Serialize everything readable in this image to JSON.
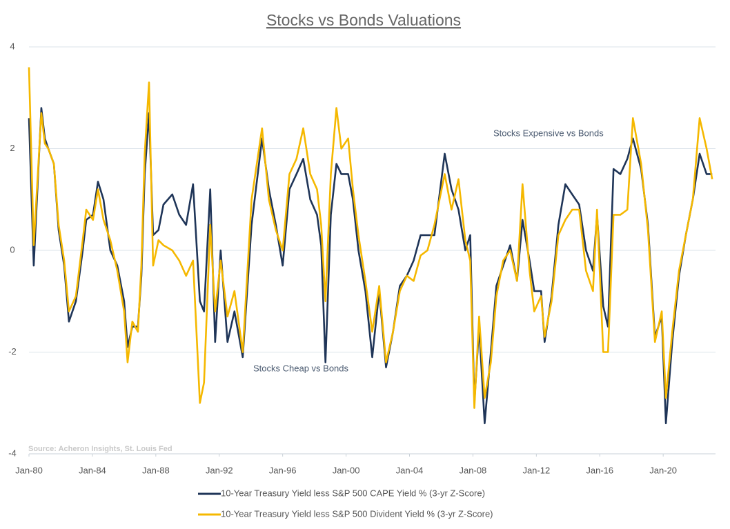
{
  "chart_data": {
    "type": "line",
    "title": "Stocks vs Bonds Valuations",
    "annotations": [
      "Stocks Expensive vs Bonds",
      "Stocks Cheap vs Bonds"
    ],
    "source": "Source: Acheron Insights, St. Louis Fed",
    "x": [
      1980.0,
      1980.3,
      1980.78,
      1981.0,
      1981.22,
      1981.57,
      1981.87,
      1982.22,
      1982.52,
      1982.96,
      1983.39,
      1983.61,
      1984.04,
      1984.35,
      1984.7,
      1985.13,
      1985.57,
      1986.0,
      1986.22,
      1986.52,
      1986.87,
      1987.09,
      1987.3,
      1987.57,
      1987.83,
      1988.17,
      1988.48,
      1989.04,
      1989.48,
      1989.91,
      1990.35,
      1990.78,
      1991.04,
      1991.43,
      1991.74,
      1992.09,
      1992.52,
      1992.96,
      1993.48,
      1994.04,
      1994.7,
      1995.13,
      1995.57,
      1996.0,
      1996.43,
      1996.87,
      1997.3,
      1997.74,
      1998.17,
      1998.43,
      1998.7,
      1999.04,
      1999.39,
      1999.7,
      2000.13,
      2000.43,
      2000.78,
      2001.22,
      2001.65,
      2002.09,
      2002.52,
      2002.96,
      2003.39,
      2003.83,
      2004.26,
      2004.7,
      2005.13,
      2005.57,
      2006.22,
      2006.65,
      2007.09,
      2007.52,
      2007.83,
      2008.09,
      2008.39,
      2008.74,
      2009.13,
      2009.48,
      2009.91,
      2010.35,
      2010.78,
      2011.13,
      2011.57,
      2011.87,
      2012.3,
      2012.52,
      2012.96,
      2013.39,
      2013.83,
      2014.26,
      2014.7,
      2015.13,
      2015.57,
      2015.83,
      2016.22,
      2016.52,
      2016.87,
      2017.3,
      2017.74,
      2018.09,
      2018.61,
      2019.04,
      2019.48,
      2019.91,
      2020.17,
      2020.57,
      2021.0,
      2021.43,
      2021.87,
      2022.3,
      2022.74,
      2023.09
    ],
    "series": [
      {
        "name": "10-Year Treasury Yield less S&P 500 CAPE Yield % (3-yr Z-Score)",
        "color": "#1f3558",
        "values": [
          2.6,
          -0.3,
          2.8,
          2.2,
          2.0,
          1.7,
          0.4,
          -0.3,
          -1.4,
          -1.0,
          0.0,
          0.6,
          0.7,
          1.35,
          1.0,
          0.0,
          -0.3,
          -1.0,
          -1.9,
          -1.5,
          -1.5,
          -0.5,
          1.5,
          2.7,
          0.3,
          0.4,
          0.9,
          1.1,
          0.7,
          0.5,
          1.3,
          -1.0,
          -1.2,
          1.2,
          -1.8,
          0.0,
          -1.8,
          -1.2,
          -2.1,
          0.5,
          2.2,
          1.2,
          0.5,
          -0.3,
          1.2,
          1.5,
          1.8,
          1.0,
          0.7,
          0.1,
          -2.2,
          0.7,
          1.7,
          1.5,
          1.5,
          1.0,
          0.0,
          -0.8,
          -2.1,
          -0.8,
          -2.3,
          -1.6,
          -0.7,
          -0.5,
          -0.2,
          0.3,
          0.3,
          0.3,
          1.9,
          1.2,
          0.8,
          0.0,
          0.3,
          -3.0,
          -1.5,
          -3.4,
          -2.0,
          -0.7,
          -0.3,
          0.1,
          -0.6,
          0.6,
          -0.2,
          -0.8,
          -0.8,
          -1.8,
          -0.9,
          0.5,
          1.3,
          1.1,
          0.9,
          0.0,
          -0.4,
          0.7,
          -1.1,
          -1.5,
          1.6,
          1.5,
          1.8,
          2.2,
          1.6,
          0.5,
          -1.7,
          -1.3,
          -3.4,
          -1.8,
          -0.5,
          0.3,
          1.0,
          1.9,
          1.5,
          1.5
        ]
      },
      {
        "name": "10-Year Treasury Yield less S&P 500 Divident Yield % (3-yr Z-Score)",
        "color": "#f5b800",
        "values": [
          3.6,
          0.1,
          2.7,
          2.1,
          2.0,
          1.7,
          0.5,
          -0.2,
          -1.2,
          -0.9,
          0.2,
          0.8,
          0.6,
          1.2,
          0.6,
          0.2,
          -0.4,
          -1.2,
          -2.2,
          -1.4,
          -1.6,
          -0.3,
          1.9,
          3.3,
          -0.3,
          0.2,
          0.1,
          0.0,
          -0.2,
          -0.5,
          -0.2,
          -3.0,
          -2.6,
          0.5,
          -1.2,
          -0.2,
          -1.3,
          -0.8,
          -2.0,
          1.0,
          2.4,
          1.0,
          0.4,
          0.0,
          1.5,
          1.8,
          2.4,
          1.5,
          1.2,
          0.5,
          -1.0,
          1.5,
          2.8,
          2.0,
          2.2,
          1.2,
          0.3,
          -0.6,
          -1.6,
          -0.7,
          -2.2,
          -1.6,
          -0.8,
          -0.5,
          -0.6,
          -0.1,
          0.0,
          0.5,
          1.5,
          0.8,
          1.4,
          0.2,
          -0.2,
          -3.1,
          -1.3,
          -2.9,
          -2.2,
          -0.9,
          -0.2,
          0.0,
          -0.6,
          1.3,
          -0.4,
          -1.2,
          -0.9,
          -1.7,
          -1.0,
          0.3,
          0.6,
          0.8,
          0.8,
          -0.4,
          -0.8,
          0.8,
          -2.0,
          -2.0,
          0.7,
          0.7,
          0.8,
          2.6,
          1.7,
          0.4,
          -1.8,
          -1.2,
          -2.9,
          -1.6,
          -0.4,
          0.3,
          1.0,
          2.6,
          2.0,
          1.4
        ]
      }
    ],
    "xlim": [
      1980,
      2023.3
    ],
    "xticks": [
      {
        "value": 1980,
        "label": "Jan-80"
      },
      {
        "value": 1984,
        "label": "Jan-84"
      },
      {
        "value": 1988,
        "label": "Jan-88"
      },
      {
        "value": 1992,
        "label": "Jan-92"
      },
      {
        "value": 1996,
        "label": "Jan-96"
      },
      {
        "value": 2000,
        "label": "Jan-00"
      },
      {
        "value": 2004,
        "label": "Jan-04"
      },
      {
        "value": 2008,
        "label": "Jan-08"
      },
      {
        "value": 2012,
        "label": "Jan-12"
      },
      {
        "value": 2016,
        "label": "Jan-16"
      },
      {
        "value": 2020,
        "label": "Jan-20"
      }
    ],
    "ylim": [
      -4,
      4
    ],
    "yticks": [
      -4,
      -2,
      0,
      2,
      4
    ],
    "grid": true,
    "legend": "bottom"
  }
}
